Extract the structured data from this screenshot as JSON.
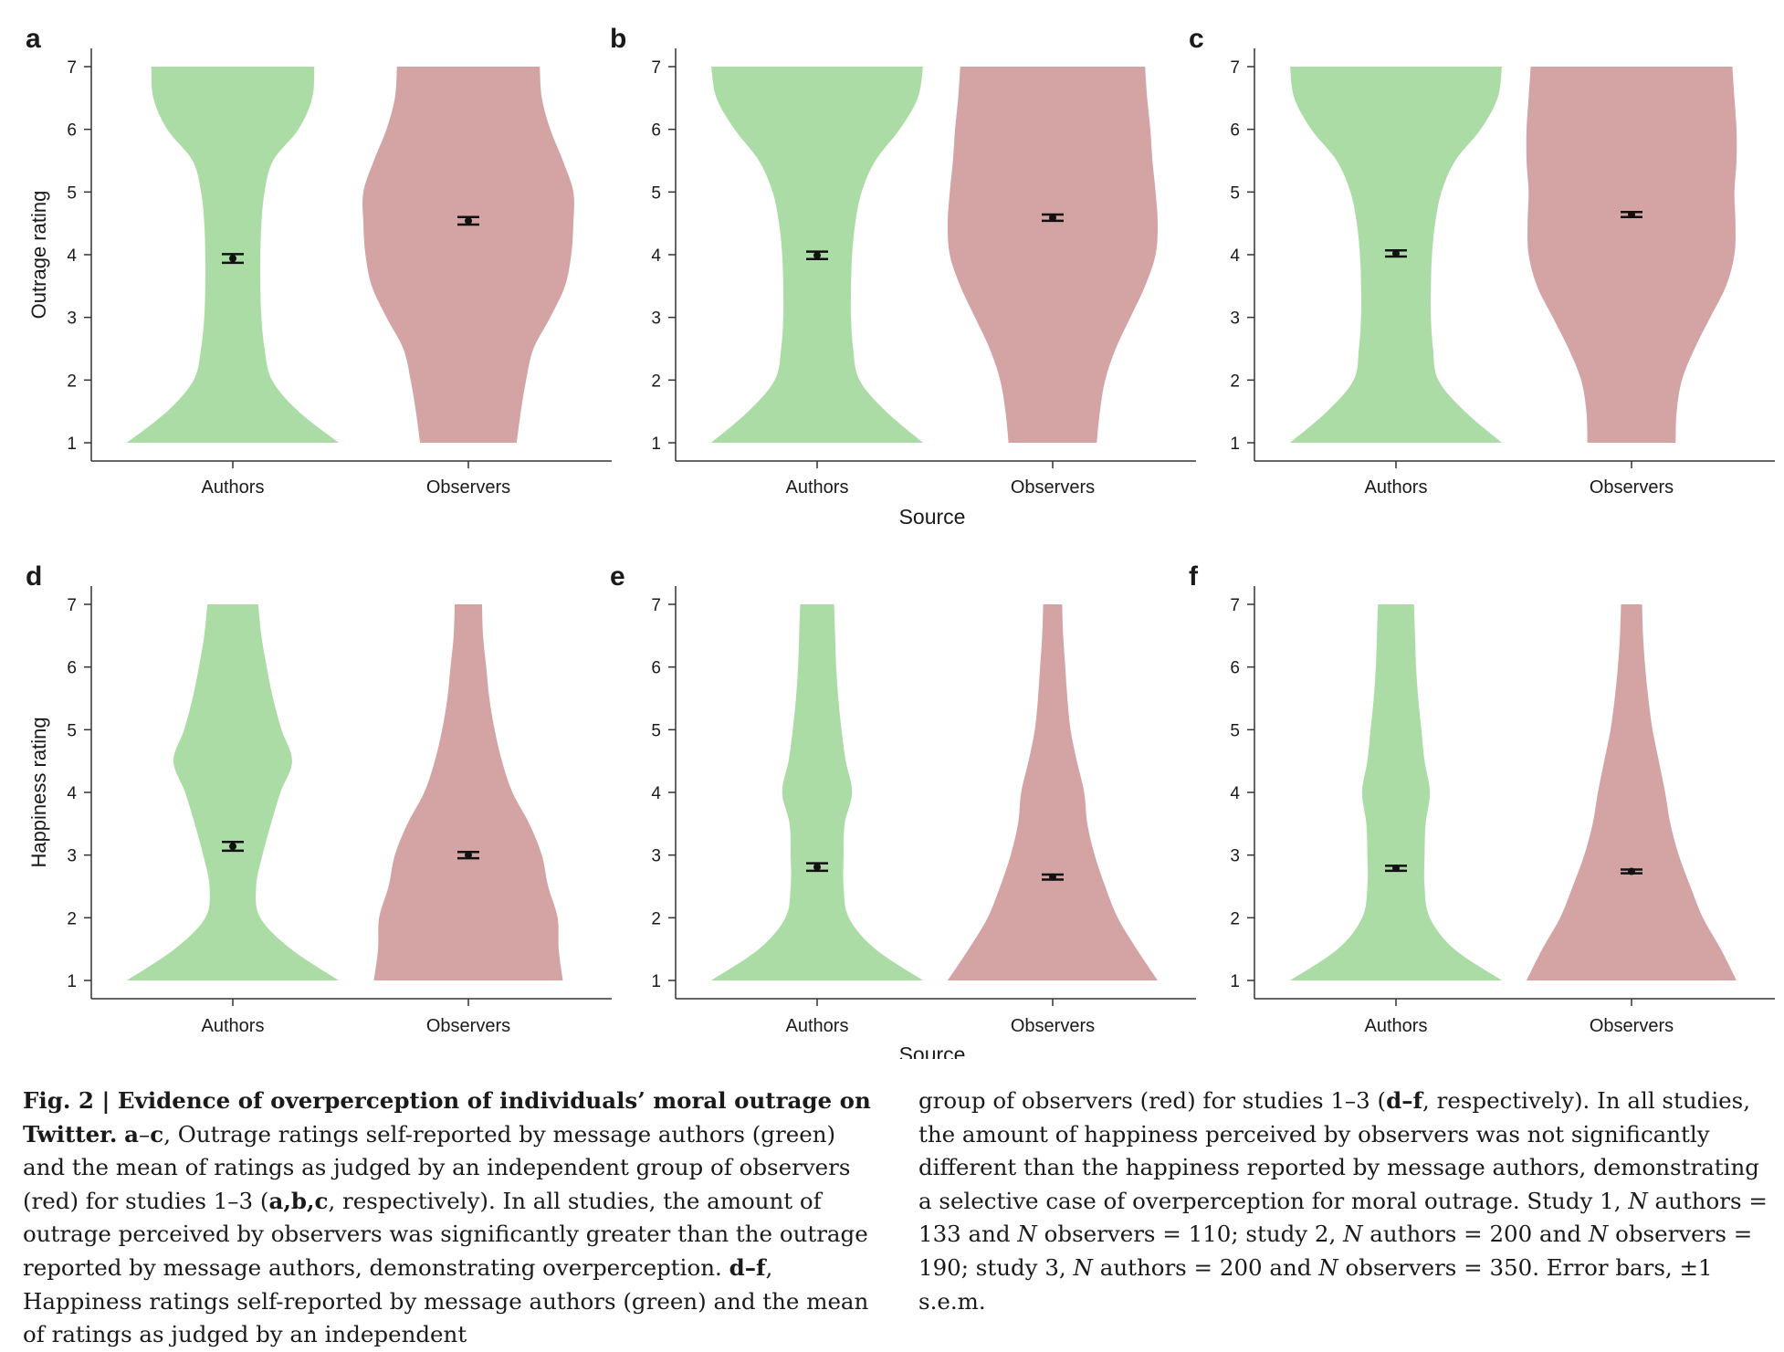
{
  "figure": {
    "colors": {
      "authors": "#acdca5",
      "observers": "#d4a3a3",
      "axis": "#333333",
      "marker": "#111111"
    },
    "y_ticks": [
      1,
      2,
      3,
      4,
      5,
      6,
      7
    ],
    "source_label": "Source",
    "panels": [
      {
        "letter": "a",
        "ylabel": "Outrage rating",
        "categories": [
          "Authors",
          "Observers"
        ],
        "means": [
          3.94,
          4.54
        ],
        "sem": [
          0.07,
          0.06
        ],
        "density_points": [
          1,
          1.5,
          2,
          2.5,
          3,
          3.5,
          4,
          4.5,
          5,
          5.5,
          6,
          6.5,
          7
        ],
        "authors_widths": [
          1.0,
          0.62,
          0.37,
          0.3,
          0.27,
          0.26,
          0.26,
          0.27,
          0.3,
          0.38,
          0.62,
          0.75,
          0.77
        ],
        "observers_widths": [
          0.46,
          0.5,
          0.55,
          0.62,
          0.78,
          0.92,
          0.98,
          1.0,
          1.0,
          0.9,
          0.78,
          0.7,
          0.68
        ]
      },
      {
        "letter": "b",
        "ylabel": "",
        "categories": [
          "Authors",
          "Observers"
        ],
        "means": [
          3.99,
          4.59
        ],
        "sem": [
          0.06,
          0.05
        ],
        "density_points": [
          1,
          1.5,
          2,
          2.5,
          3,
          3.5,
          4,
          4.5,
          5,
          5.5,
          6,
          6.5,
          7
        ],
        "authors_widths": [
          1.0,
          0.65,
          0.4,
          0.34,
          0.32,
          0.32,
          0.33,
          0.36,
          0.42,
          0.55,
          0.78,
          0.95,
          1.0
        ],
        "observers_widths": [
          0.42,
          0.45,
          0.5,
          0.6,
          0.74,
          0.88,
          0.98,
          1.0,
          0.98,
          0.95,
          0.93,
          0.9,
          0.88
        ]
      },
      {
        "letter": "c",
        "ylabel": "",
        "categories": [
          "Authors",
          "Observers"
        ],
        "means": [
          4.02,
          4.64
        ],
        "sem": [
          0.05,
          0.04
        ],
        "density_points": [
          1,
          1.5,
          2,
          2.5,
          3,
          3.5,
          4,
          4.5,
          5,
          5.5,
          6,
          6.5,
          7
        ],
        "authors_widths": [
          1.0,
          0.65,
          0.4,
          0.35,
          0.33,
          0.33,
          0.34,
          0.37,
          0.43,
          0.56,
          0.8,
          0.96,
          1.0
        ],
        "observers_widths": [
          0.42,
          0.43,
          0.48,
          0.6,
          0.75,
          0.9,
          0.98,
          0.99,
          0.98,
          1.0,
          1.0,
          0.98,
          0.96
        ]
      },
      {
        "letter": "d",
        "ylabel": "Happiness rating",
        "categories": [
          "Authors",
          "Observers"
        ],
        "means": [
          3.14,
          3.0
        ],
        "sem": [
          0.07,
          0.05
        ],
        "density_points": [
          1,
          1.5,
          2,
          2.5,
          3,
          3.5,
          4,
          4.5,
          5,
          5.5,
          6,
          6.5,
          7
        ],
        "authors_widths": [
          1.0,
          0.55,
          0.26,
          0.22,
          0.28,
          0.36,
          0.45,
          0.56,
          0.46,
          0.38,
          0.32,
          0.27,
          0.24
        ],
        "observers_widths": [
          0.9,
          0.86,
          0.85,
          0.76,
          0.7,
          0.58,
          0.42,
          0.32,
          0.25,
          0.2,
          0.17,
          0.14,
          0.13
        ]
      },
      {
        "letter": "e",
        "ylabel": "",
        "categories": [
          "Authors",
          "Observers"
        ],
        "means": [
          2.81,
          2.65
        ],
        "sem": [
          0.06,
          0.04
        ],
        "density_points": [
          1,
          1.5,
          2,
          2.5,
          3,
          3.5,
          4,
          4.5,
          5,
          5.5,
          6,
          6.5,
          7
        ],
        "authors_widths": [
          1.0,
          0.55,
          0.3,
          0.25,
          0.25,
          0.26,
          0.33,
          0.27,
          0.23,
          0.2,
          0.18,
          0.17,
          0.16
        ],
        "observers_widths": [
          1.0,
          0.8,
          0.62,
          0.5,
          0.4,
          0.33,
          0.3,
          0.23,
          0.17,
          0.14,
          0.12,
          0.1,
          0.09
        ]
      },
      {
        "letter": "f",
        "ylabel": "",
        "categories": [
          "Authors",
          "Observers"
        ],
        "means": [
          2.79,
          2.74
        ],
        "sem": [
          0.04,
          0.03
        ],
        "density_points": [
          1,
          1.5,
          2,
          2.5,
          3,
          3.5,
          4,
          4.5,
          5,
          5.5,
          6,
          6.5,
          7
        ],
        "authors_widths": [
          1.0,
          0.55,
          0.32,
          0.27,
          0.27,
          0.28,
          0.32,
          0.27,
          0.24,
          0.21,
          0.19,
          0.18,
          0.17
        ],
        "observers_widths": [
          1.0,
          0.85,
          0.68,
          0.56,
          0.45,
          0.37,
          0.32,
          0.26,
          0.2,
          0.16,
          0.13,
          0.11,
          0.1
        ]
      }
    ]
  },
  "caption": {
    "fig_label": "Fig. 2 | ",
    "title": "Evidence of overperception of individuals’ moral outrage on Twitter.",
    "p1_lead": "a",
    "p1_dash": "–",
    "p1_lead2": "c",
    "p1_text": ", Outrage ratings self-reported by message authors (green) and the mean of ratings as judged by an independent group of observers (red) for studies 1–3 (",
    "p1_refs": "a,b,c",
    "p1_tail": ", respectively). In all studies, the amount of outrage perceived by observers was significantly greater than the outrage reported by message authors, demonstrating overperception.",
    "p2_lead": "d–f",
    "p2_text": ", Happiness ratings self-reported by message authors (green) and the mean of ratings as judged by an independent group of observers (red) for studies 1–3 (",
    "p2_refs": "d–f",
    "p2_tail": ", respectively). In all studies, the amount of happiness perceived by observers was not significantly different than the happiness reported by message authors, demonstrating a selective case of overperception for moral outrage. Study 1, ",
    "n": "N",
    "s1a": " authors = 133 and ",
    "s1b": " observers = 110; study 2, ",
    "s2a": " authors = 200 and ",
    "s2b": " observers = 190; study 3, ",
    "s3a": " authors = 200 and ",
    "s3b": " observers = 350. Error bars, ±1 s.e.m."
  },
  "chart_data": [
    {
      "type": "violin",
      "panel": "a",
      "ylabel": "Outrage rating",
      "xlabel": "",
      "categories": [
        "Authors",
        "Observers"
      ],
      "ylim": [
        1,
        7
      ],
      "series": [
        {
          "name": "Authors",
          "mean": 3.94,
          "sem": 0.07,
          "color": "#acdca5"
        },
        {
          "name": "Observers",
          "mean": 4.54,
          "sem": 0.06,
          "color": "#d4a3a3"
        }
      ]
    },
    {
      "type": "violin",
      "panel": "b",
      "ylabel": "",
      "xlabel": "Source",
      "categories": [
        "Authors",
        "Observers"
      ],
      "ylim": [
        1,
        7
      ],
      "series": [
        {
          "name": "Authors",
          "mean": 3.99,
          "sem": 0.06,
          "color": "#acdca5"
        },
        {
          "name": "Observers",
          "mean": 4.59,
          "sem": 0.05,
          "color": "#d4a3a3"
        }
      ]
    },
    {
      "type": "violin",
      "panel": "c",
      "ylabel": "",
      "xlabel": "",
      "categories": [
        "Authors",
        "Observers"
      ],
      "ylim": [
        1,
        7
      ],
      "series": [
        {
          "name": "Authors",
          "mean": 4.02,
          "sem": 0.05,
          "color": "#acdca5"
        },
        {
          "name": "Observers",
          "mean": 4.64,
          "sem": 0.04,
          "color": "#d4a3a3"
        }
      ]
    },
    {
      "type": "violin",
      "panel": "d",
      "ylabel": "Happiness rating",
      "xlabel": "",
      "categories": [
        "Authors",
        "Observers"
      ],
      "ylim": [
        1,
        7
      ],
      "series": [
        {
          "name": "Authors",
          "mean": 3.14,
          "sem": 0.07,
          "color": "#acdca5"
        },
        {
          "name": "Observers",
          "mean": 3.0,
          "sem": 0.05,
          "color": "#d4a3a3"
        }
      ]
    },
    {
      "type": "violin",
      "panel": "e",
      "ylabel": "",
      "xlabel": "Source",
      "categories": [
        "Authors",
        "Observers"
      ],
      "ylim": [
        1,
        7
      ],
      "series": [
        {
          "name": "Authors",
          "mean": 2.81,
          "sem": 0.06,
          "color": "#acdca5"
        },
        {
          "name": "Observers",
          "mean": 2.65,
          "sem": 0.04,
          "color": "#d4a3a3"
        }
      ]
    },
    {
      "type": "violin",
      "panel": "f",
      "ylabel": "",
      "xlabel": "",
      "categories": [
        "Authors",
        "Observers"
      ],
      "ylim": [
        1,
        7
      ],
      "series": [
        {
          "name": "Authors",
          "mean": 2.79,
          "sem": 0.04,
          "color": "#acdca5"
        },
        {
          "name": "Observers",
          "mean": 2.74,
          "sem": 0.03,
          "color": "#d4a3a3"
        }
      ]
    }
  ]
}
